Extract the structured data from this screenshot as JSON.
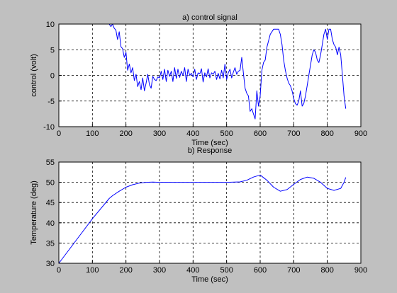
{
  "figure": {
    "background": "#c0c0c0",
    "axes_background": "#ffffff",
    "line_color": "#0000ff",
    "grid": true,
    "grid_style": "dashed"
  },
  "chart_data": [
    {
      "type": "line",
      "title": "a) control signal",
      "xlabel": "Time (sec)",
      "ylabel": "control (volt)",
      "xlim": [
        0,
        900
      ],
      "ylim": [
        -10,
        10
      ],
      "xticks": [
        0,
        100,
        200,
        300,
        400,
        500,
        600,
        700,
        800,
        900
      ],
      "yticks": [
        -10,
        -5,
        0,
        5,
        10
      ],
      "series": [
        {
          "x": [
            0,
            100,
            150,
            155,
            160,
            165,
            170,
            175,
            180,
            185,
            190,
            195,
            200,
            205,
            210,
            215,
            220,
            225,
            230,
            235,
            240,
            245,
            250,
            255,
            260,
            265,
            270,
            275,
            280,
            285,
            290,
            295,
            300,
            305,
            310,
            315,
            320,
            325,
            330,
            335,
            340,
            345,
            350,
            355,
            360,
            365,
            370,
            375,
            380,
            385,
            390,
            395,
            400,
            405,
            410,
            415,
            420,
            425,
            430,
            435,
            440,
            445,
            450,
            455,
            460,
            465,
            470,
            475,
            480,
            485,
            490,
            495,
            500,
            505,
            510,
            515,
            520,
            525,
            530,
            535,
            540,
            545,
            550,
            555,
            560,
            565,
            570,
            575,
            580,
            585,
            590,
            595,
            600,
            605,
            610,
            615,
            620,
            630,
            640,
            650,
            655,
            660,
            665,
            670,
            675,
            680,
            685,
            690,
            695,
            700,
            705,
            710,
            715,
            720,
            725,
            730,
            735,
            740,
            745,
            750,
            755,
            760,
            765,
            770,
            775,
            780,
            785,
            790,
            795,
            800,
            805,
            810,
            815,
            820,
            825,
            830,
            835,
            840,
            845,
            850,
            855
          ],
          "y": [
            10,
            10,
            10,
            9.5,
            10,
            9.2,
            8.8,
            7,
            8.5,
            5.6,
            5.2,
            3.5,
            4.5,
            1,
            2.2,
            0.5,
            1.5,
            -1,
            0.2,
            -2.2,
            -1.2,
            -2.8,
            -0.5,
            -3,
            -1.5,
            0.2,
            -1.8,
            -2.5,
            -0.2,
            -0.8,
            -1,
            -0.3,
            -0.5,
            0.8,
            -0.8,
            1.2,
            -1.2,
            1,
            -0.2,
            0.8,
            -1.2,
            1.5,
            -0.6,
            1.2,
            -0.4,
            0.8,
            0,
            1.5,
            -1.2,
            1.2,
            0,
            0.4,
            -0.3,
            1.2,
            -0.8,
            0.5,
            0.3,
            1.3,
            -1.3,
            0.5,
            -0.3,
            1.3,
            -0.5,
            0.5,
            0.2,
            0.8,
            -0.8,
            0.4,
            -0.7,
            1,
            -0.5,
            2.2,
            -0.8,
            0.5,
            1.2,
            -0.5,
            0.6,
            1.5,
            0.2,
            0.8,
            1,
            3.5,
            0.5,
            -2.5,
            -3.5,
            -4,
            -7,
            -6.5,
            -7.5,
            -8.5,
            -3,
            -6,
            -4,
            1,
            2.5,
            3,
            5.5,
            8,
            9,
            9,
            9,
            8,
            6,
            3,
            1,
            -0.5,
            -1.5,
            -2,
            -3,
            -4.5,
            -5.5,
            -5.8,
            -5,
            -3,
            -6,
            -5.5,
            -4,
            -2,
            0,
            2,
            4,
            5,
            4.5,
            3,
            2.5,
            4,
            6,
            8,
            9,
            7,
            9,
            9,
            7,
            6,
            5.5,
            4,
            5.5,
            4,
            0,
            -4,
            -6.5
          ]
        }
      ]
    },
    {
      "type": "line",
      "title": "b) Response",
      "xlabel": "Time (sec)",
      "ylabel": "Temperature (deg)",
      "xlim": [
        0,
        900
      ],
      "ylim": [
        30,
        55
      ],
      "xticks": [
        0,
        100,
        200,
        300,
        400,
        500,
        600,
        700,
        800,
        900
      ],
      "yticks": [
        30,
        35,
        40,
        45,
        50,
        55
      ],
      "series": [
        {
          "x": [
            0,
            50,
            100,
            150,
            160,
            180,
            200,
            220,
            240,
            260,
            280,
            300,
            320,
            340,
            360,
            400,
            450,
            500,
            540,
            560,
            580,
            600,
            620,
            640,
            660,
            680,
            700,
            720,
            740,
            760,
            780,
            800,
            820,
            840,
            850,
            855
          ],
          "y": [
            30,
            35.5,
            41,
            46,
            46.7,
            47.8,
            48.8,
            49.4,
            49.8,
            50,
            50.05,
            50,
            50.02,
            50,
            50,
            50,
            50,
            50,
            50.1,
            50.5,
            51.3,
            51.8,
            50.5,
            48.8,
            47.8,
            48.2,
            49.5,
            50.7,
            51.3,
            51,
            50,
            48.5,
            48,
            48.5,
            50,
            51.2
          ]
        }
      ]
    }
  ]
}
